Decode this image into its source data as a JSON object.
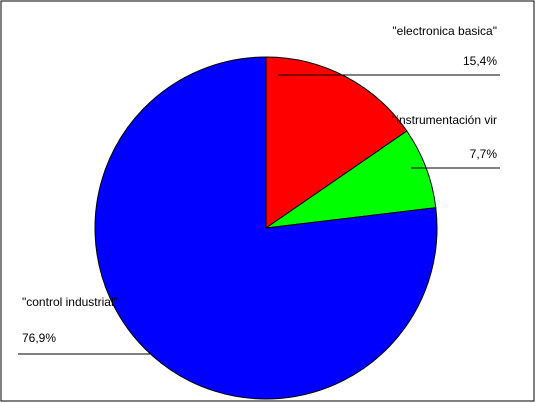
{
  "chart_data": {
    "type": "pie",
    "slices": [
      {
        "label": "\"electronica basica\"",
        "value": 15.4,
        "percent_label": "15,4%",
        "color": "#ff0000"
      },
      {
        "label": "\"instrumentación vir",
        "value": 7.7,
        "percent_label": "7,7%",
        "color": "#00ff00"
      },
      {
        "label": "\"control industrial\"",
        "value": 76.9,
        "percent_label": "76,9%",
        "color": "#0000ff"
      }
    ],
    "start_angle_deg": 0,
    "direction": "clockwise",
    "legend": "none",
    "border_color": "#000000"
  }
}
